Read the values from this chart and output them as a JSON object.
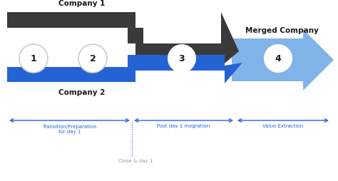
{
  "bg_color": "#ffffff",
  "dark_color": "#3a3a3a",
  "blue_color": "#2563d4",
  "light_blue_color": "#80b3e8",
  "circle_bg": "#ffffff",
  "circle_edge": "#cccccc",
  "text_dark": "#1a1a1a",
  "text_blue": "#2563d4",
  "text_gray": "#999999",
  "company1_label": "Company 1",
  "company2_label": "Company 2",
  "merged_label": "Merged Company",
  "numbers": [
    "1",
    "2",
    "3",
    "4"
  ],
  "timeline_labels": [
    "Transition/Preparation\nfor day 1",
    "Post day 1 inegration",
    "Value Extraction"
  ],
  "close_label": "Close & day 1",
  "figsize": [
    4.74,
    2.55
  ],
  "dpi": 100
}
